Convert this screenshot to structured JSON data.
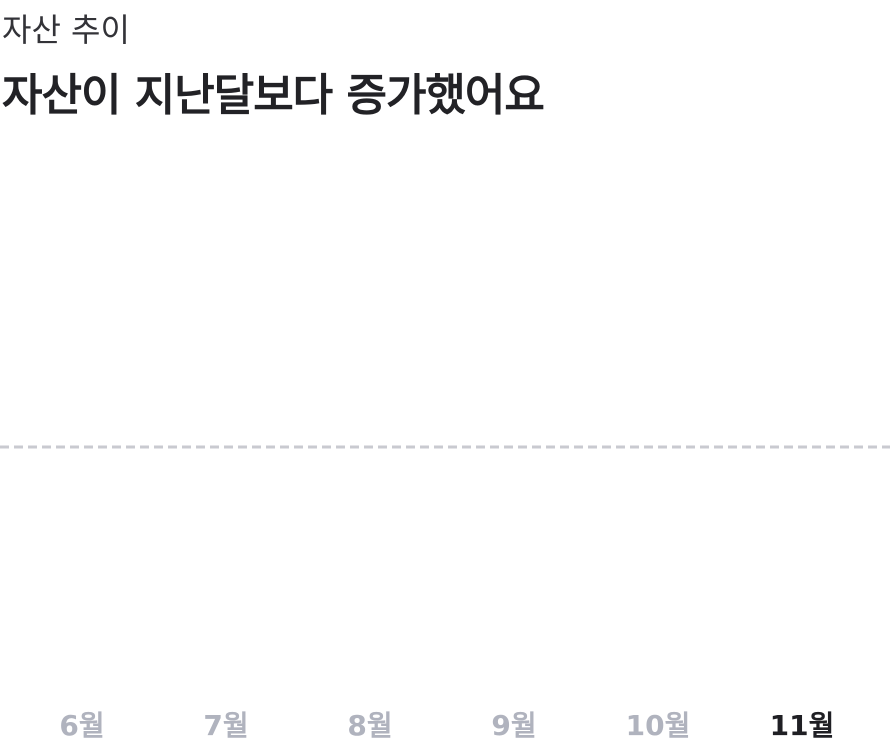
{
  "header": {
    "subtitle": "자산 추이",
    "title": "자산이 지난달보다 증가했어요"
  },
  "chart": {
    "months": [
      "6월",
      "7월",
      "8월",
      "9월",
      "10월",
      "11월"
    ],
    "selected": 5
  }
}
